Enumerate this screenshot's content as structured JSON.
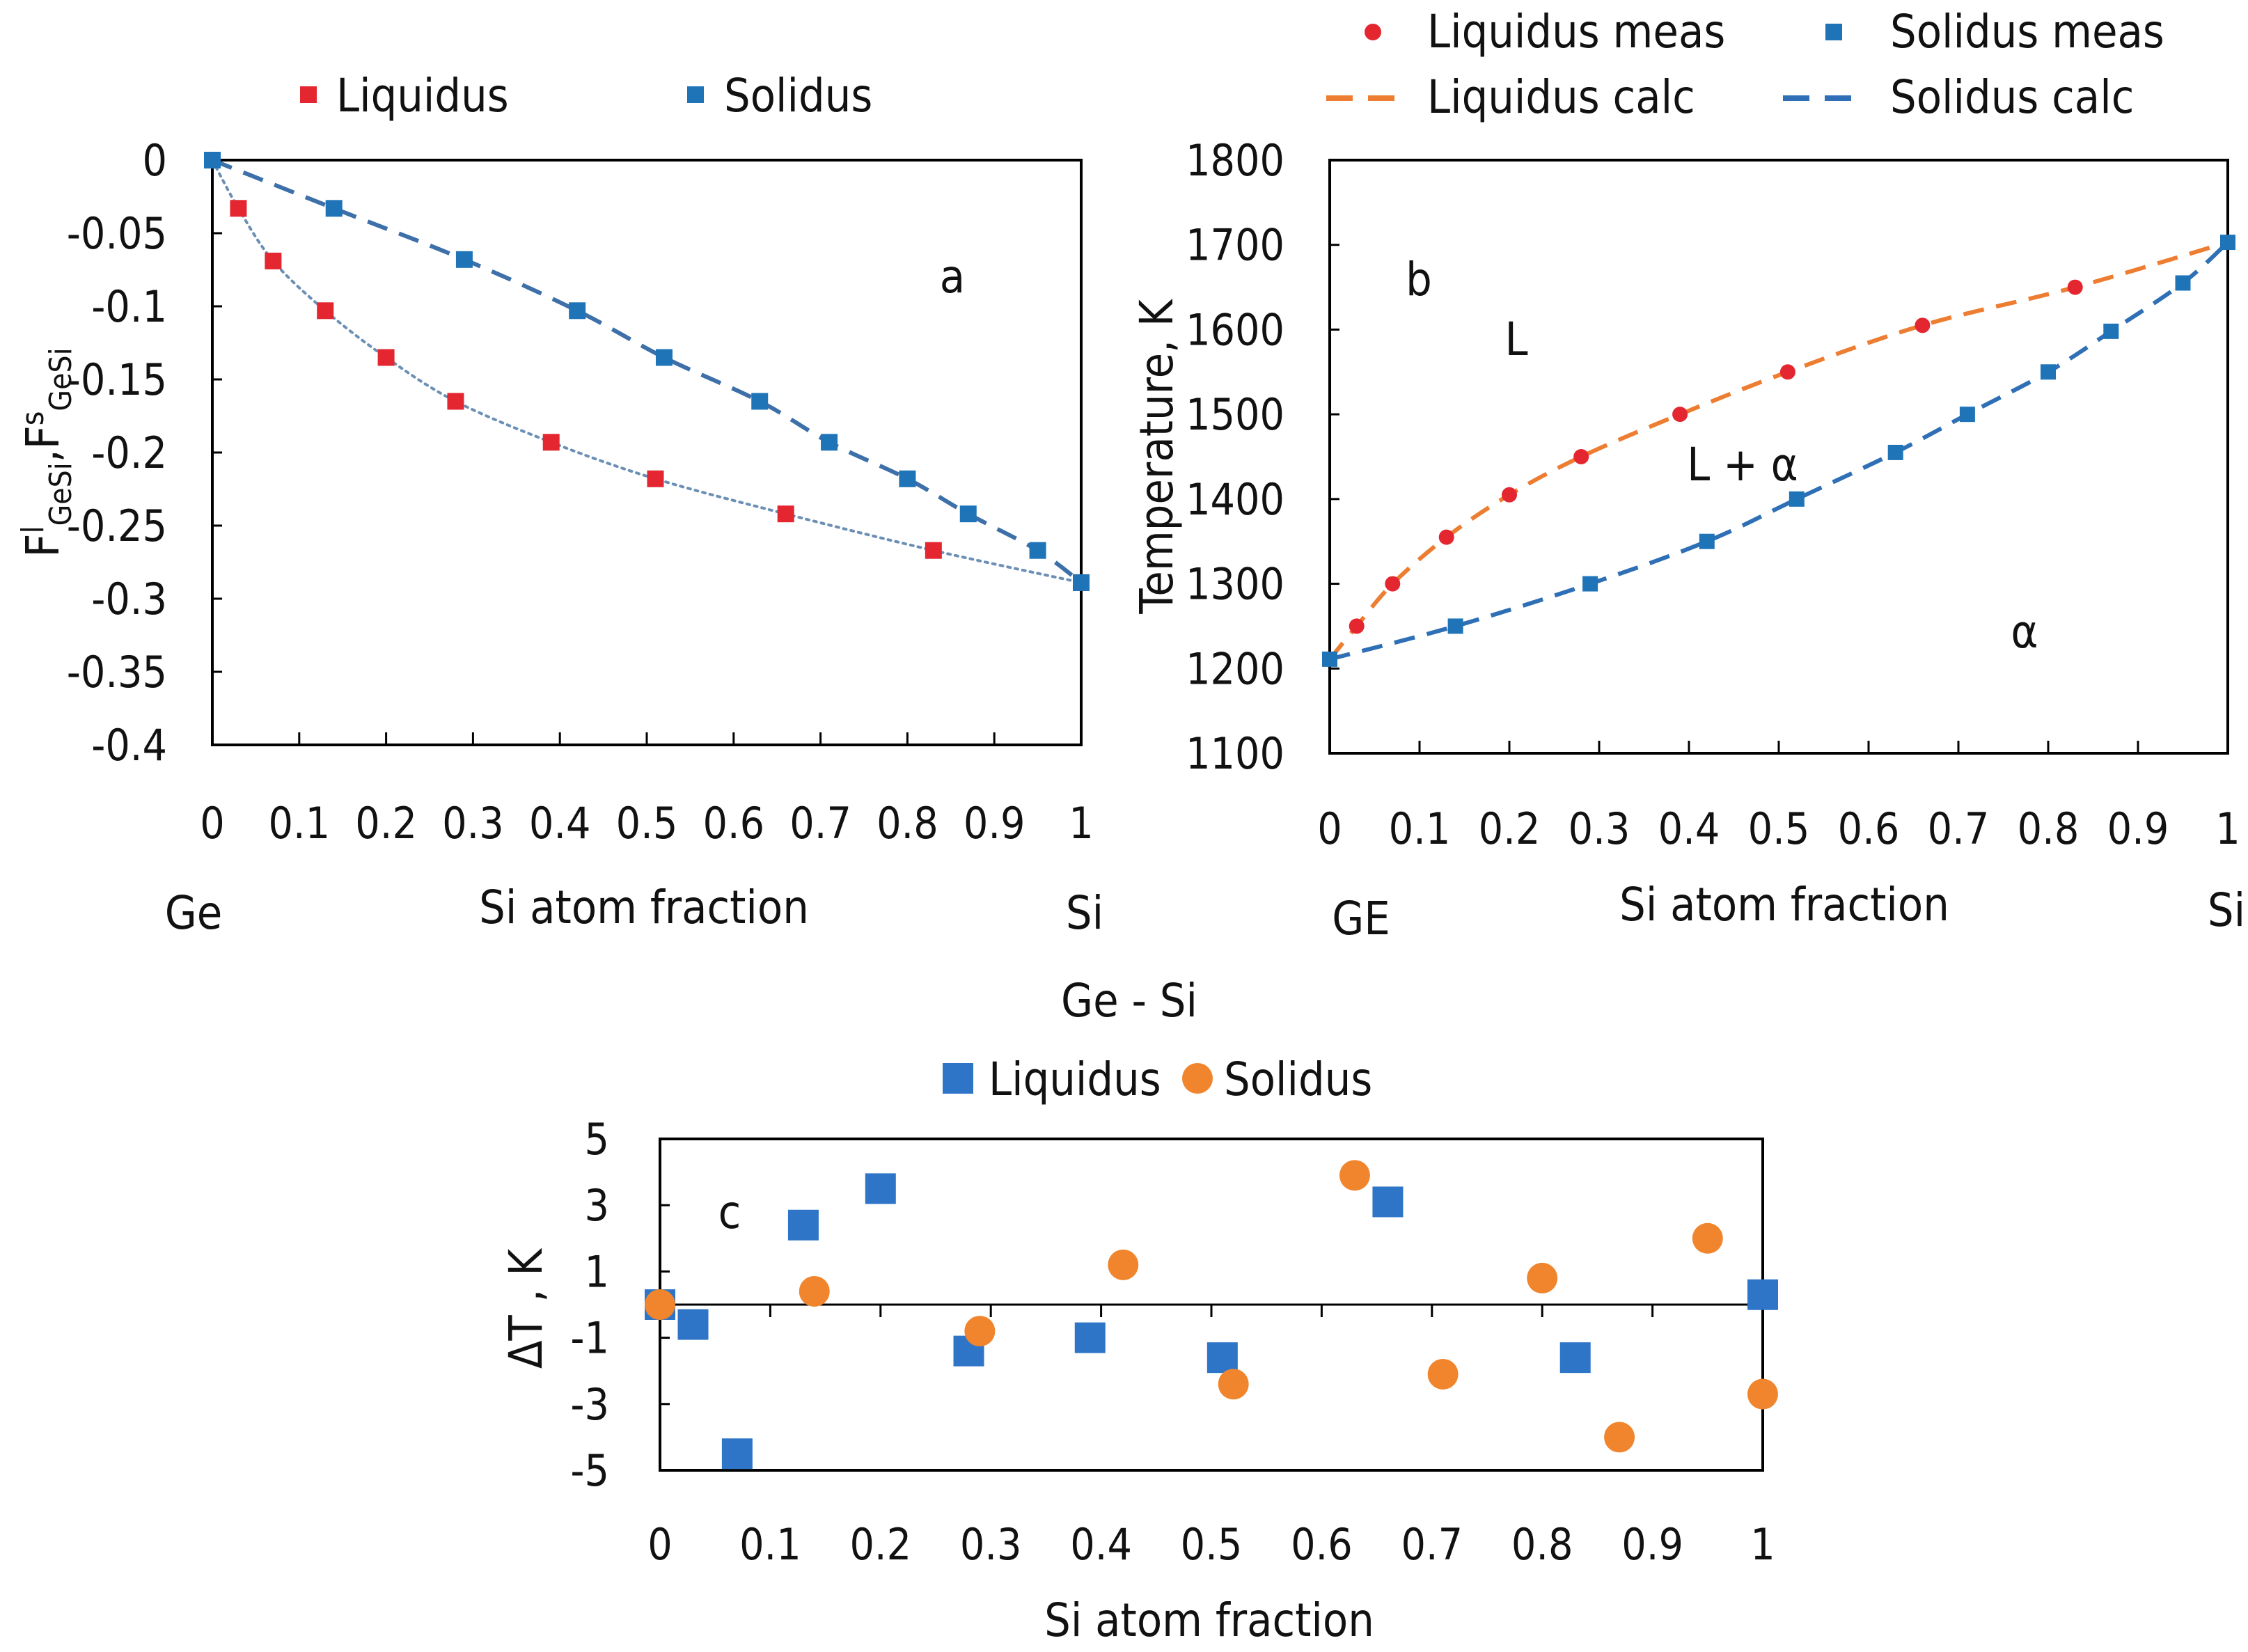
{
  "figure_title": "Ge - Si",
  "chart_data": [
    {
      "id": "a",
      "type": "line",
      "annotation": "a",
      "xlabel": "Si atom fraction",
      "xlabel_left": "Ge",
      "xlabel_right": "Si",
      "ylabel": {
        "main1": "F",
        "sup1": "l",
        "sub1": "GeSi",
        "sep": ",",
        "main2": "F",
        "sup2": "s",
        "sub2": "GeSi"
      },
      "xlim": [
        0,
        1
      ],
      "ylim": [
        -0.4,
        0
      ],
      "x_ticks": [
        0,
        0.1,
        0.2,
        0.3,
        0.4,
        0.5,
        0.6,
        0.7,
        0.8,
        0.9,
        1
      ],
      "x_tick_labels": [
        "0",
        "0.1",
        "0.2",
        "0.3",
        "0.4",
        "0.5",
        "0.6",
        "0.7",
        "0.8",
        "0.9",
        "1"
      ],
      "y_ticks": [
        0,
        -0.05,
        -0.1,
        -0.15,
        -0.2,
        -0.25,
        -0.3,
        -0.35,
        -0.4
      ],
      "y_tick_labels": [
        "0",
        "-0.05",
        "-0.1",
        "-0.15",
        "-0.2",
        "-0.25",
        "-0.3",
        "-0.35",
        "-0.4"
      ],
      "legend": [
        "Liquidus",
        "Solidus"
      ],
      "series": [
        {
          "name": "Liquidus",
          "color": "#e3262f",
          "marker": "square",
          "line": "dotted",
          "line_color": "#6b8fb5",
          "x": [
            0,
            0.03,
            0.07,
            0.13,
            0.2,
            0.28,
            0.39,
            0.51,
            0.66,
            0.83,
            1
          ],
          "y": [
            0,
            -0.033,
            -0.069,
            -0.103,
            -0.135,
            -0.165,
            -0.193,
            -0.218,
            -0.242,
            -0.267,
            -0.289
          ]
        },
        {
          "name": "Solidus",
          "color": "#1f74b8",
          "marker": "square",
          "line": "dashed",
          "line_color": "#3d6fa8",
          "x": [
            0,
            0.14,
            0.29,
            0.42,
            0.52,
            0.63,
            0.71,
            0.8,
            0.87,
            0.95,
            1
          ],
          "y": [
            0,
            -0.033,
            -0.068,
            -0.103,
            -0.135,
            -0.165,
            -0.193,
            -0.218,
            -0.242,
            -0.267,
            -0.289
          ]
        }
      ]
    },
    {
      "id": "b",
      "type": "line",
      "annotation": "b",
      "region_labels": [
        "L",
        "L + α",
        "α"
      ],
      "xlabel": "Si atom fraction",
      "xlabel_left": "GE",
      "xlabel_right": "Si",
      "ylabel": "Temperature, K",
      "xlim": [
        0,
        1
      ],
      "ylim": [
        1100,
        1800
      ],
      "x_ticks": [
        0,
        0.1,
        0.2,
        0.3,
        0.4,
        0.5,
        0.6,
        0.7,
        0.8,
        0.9,
        1
      ],
      "x_tick_labels": [
        "0",
        "0.1",
        "0.2",
        "0.3",
        "0.4",
        "0.5",
        "0.6",
        "0.7",
        "0.8",
        "0.9",
        "1"
      ],
      "y_ticks": [
        1100,
        1200,
        1300,
        1400,
        1500,
        1600,
        1700,
        1800
      ],
      "y_tick_labels": [
        "1100",
        "1200",
        "1300",
        "1400",
        "1500",
        "1600",
        "1700",
        "1800"
      ],
      "legend": [
        "Liquidus meas",
        "Solidus meas",
        "Liquidus calc",
        "Solidus calc"
      ],
      "series": [
        {
          "name": "Liquidus meas",
          "color": "#e3262f",
          "marker": "circle",
          "x": [
            0.03,
            0.07,
            0.13,
            0.2,
            0.28,
            0.39,
            0.51,
            0.66,
            0.83
          ],
          "y": [
            1250,
            1300,
            1355,
            1405,
            1450,
            1500,
            1550,
            1605,
            1650
          ]
        },
        {
          "name": "Solidus meas",
          "color": "#1f74b8",
          "marker": "square",
          "x": [
            0,
            0.14,
            0.29,
            0.42,
            0.52,
            0.63,
            0.71,
            0.8,
            0.87,
            0.95,
            1
          ],
          "y": [
            1211,
            1250,
            1300,
            1350,
            1400,
            1455,
            1500,
            1550,
            1598,
            1655,
            1703
          ]
        },
        {
          "name": "Liquidus calc",
          "color": "#ed7d31",
          "line": "dashed",
          "x": [
            0,
            0.03,
            0.07,
            0.13,
            0.2,
            0.28,
            0.39,
            0.51,
            0.66,
            0.83,
            1
          ],
          "y": [
            1211,
            1250,
            1300,
            1355,
            1405,
            1450,
            1500,
            1550,
            1605,
            1650,
            1703
          ]
        },
        {
          "name": "Solidus calc",
          "color": "#2e6fb5",
          "line": "dashed",
          "x": [
            0,
            0.14,
            0.29,
            0.42,
            0.52,
            0.63,
            0.71,
            0.8,
            0.87,
            0.95,
            1
          ],
          "y": [
            1211,
            1250,
            1300,
            1350,
            1400,
            1455,
            1500,
            1550,
            1598,
            1655,
            1703
          ]
        }
      ]
    },
    {
      "id": "c",
      "type": "scatter",
      "annotation": "c",
      "xlabel": "Si atom fraction",
      "ylabel": "ΔT , K",
      "xlim": [
        0,
        1
      ],
      "ylim": [
        -5,
        5
      ],
      "x_ticks": [
        0,
        0.1,
        0.2,
        0.3,
        0.4,
        0.5,
        0.6,
        0.7,
        0.8,
        0.9,
        1
      ],
      "x_tick_labels": [
        "0",
        "0.1",
        "0.2",
        "0.3",
        "0.4",
        "0.5",
        "0.6",
        "0.7",
        "0.8",
        "0.9",
        "1"
      ],
      "y_ticks": [
        5,
        3,
        1,
        -1,
        -3,
        -5
      ],
      "y_tick_labels": [
        "5",
        "3",
        "1",
        "-1",
        "-3",
        "-5"
      ],
      "legend": [
        "Liquidus",
        "Solidus"
      ],
      "series": [
        {
          "name": "Liquidus",
          "color": "#2e75c8",
          "marker": "square",
          "x": [
            0,
            0.03,
            0.07,
            0.13,
            0.2,
            0.28,
            0.39,
            0.51,
            0.66,
            0.83,
            1
          ],
          "y": [
            0,
            -0.6,
            -4.5,
            2.4,
            3.5,
            -1.4,
            -1.0,
            -1.6,
            3.1,
            -1.6,
            0.3
          ]
        },
        {
          "name": "Solidus",
          "color": "#f0852d",
          "marker": "circle",
          "x": [
            0,
            0.14,
            0.29,
            0.42,
            0.52,
            0.63,
            0.71,
            0.8,
            0.87,
            0.95,
            1
          ],
          "y": [
            0,
            0.4,
            -0.8,
            1.2,
            -2.4,
            3.9,
            -2.1,
            0.8,
            -4.0,
            2.0,
            -2.7
          ]
        }
      ]
    }
  ]
}
